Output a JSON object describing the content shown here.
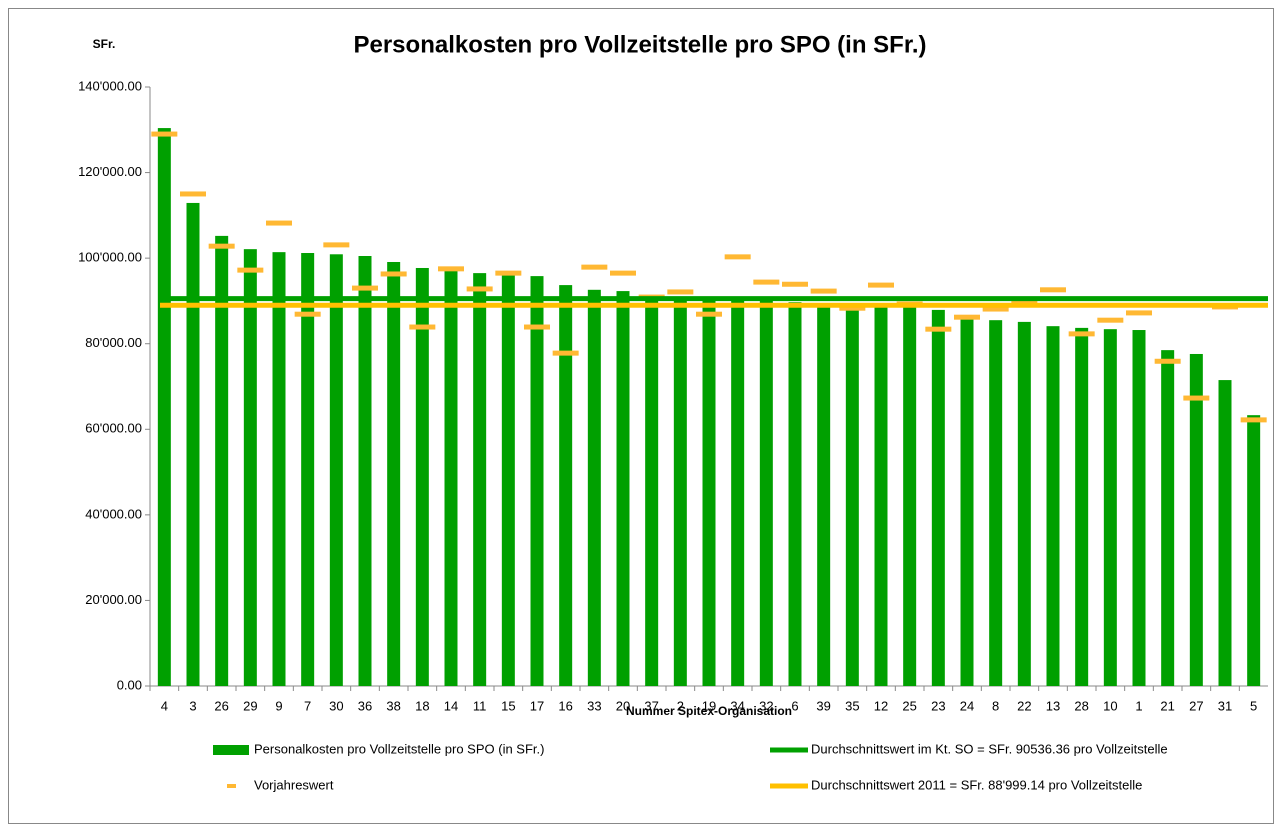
{
  "chart_data": {
    "type": "bar",
    "title": "Personalkosten pro Vollzeitstelle pro SPO (in SFr.)",
    "y_axis_label": "SFr.",
    "x_axis_label": "Nummer Spitex-Organisation",
    "categories": [
      "4",
      "3",
      "26",
      "29",
      "9",
      "7",
      "30",
      "36",
      "38",
      "18",
      "14",
      "11",
      "15",
      "17",
      "16",
      "33",
      "20",
      "37",
      "2",
      "19",
      "34",
      "32",
      "6",
      "39",
      "35",
      "12",
      "25",
      "23",
      "24",
      "8",
      "22",
      "13",
      "28",
      "10",
      "1",
      "21",
      "27",
      "31",
      "5"
    ],
    "series": [
      {
        "name": "Personalkosten pro Vollzeitstelle pro SPO (in SFr.)",
        "color": "#00a000",
        "mark": "bar",
        "values": [
          130400,
          112900,
          105200,
          102100,
          101400,
          101200,
          100900,
          100500,
          99100,
          97700,
          97200,
          96500,
          96100,
          95800,
          93700,
          92600,
          92300,
          91100,
          90900,
          90700,
          90200,
          90000,
          89700,
          89500,
          88300,
          88800,
          88600,
          87900,
          86700,
          85500,
          85100,
          84100,
          83700,
          83400,
          83200,
          78500,
          77600,
          71500,
          63300
        ]
      },
      {
        "name": "Vorjahreswert",
        "color": "#ffb833",
        "mark": "dash",
        "values": [
          129000,
          115000,
          102800,
          97200,
          108200,
          86900,
          103100,
          93000,
          96300,
          83900,
          97500,
          92800,
          96500,
          83900,
          77800,
          97900,
          96500,
          90900,
          92100,
          86900,
          100300,
          94400,
          93900,
          92300,
          88300,
          93700,
          89300,
          83400,
          86200,
          88100,
          90000,
          92600,
          82300,
          85500,
          87200,
          75900,
          67300,
          88600,
          62200
        ]
      }
    ],
    "reference_lines": [
      {
        "name": "Durchschnittswert im Kt. SO = SFr. 90536.36 pro Vollzeitstelle",
        "value": 90536.36,
        "color": "#00a000"
      },
      {
        "name": "Durchschnittswert 2011 = SFr. 88'999.14 pro Vollzeitstelle",
        "value": 88999.14,
        "color": "#ffc000"
      }
    ],
    "ylim": [
      0,
      140000
    ],
    "yticks": [
      {
        "value": 0,
        "label": "0.00"
      },
      {
        "value": 20000,
        "label": "20'000.00"
      },
      {
        "value": 40000,
        "label": "40'000.00"
      },
      {
        "value": 60000,
        "label": "60'000.00"
      },
      {
        "value": 80000,
        "label": "80'000.00"
      },
      {
        "value": 100000,
        "label": "100'000.00"
      },
      {
        "value": 120000,
        "label": "120'000.00"
      },
      {
        "value": 140000,
        "label": "140'000.00"
      }
    ],
    "grid": false
  }
}
